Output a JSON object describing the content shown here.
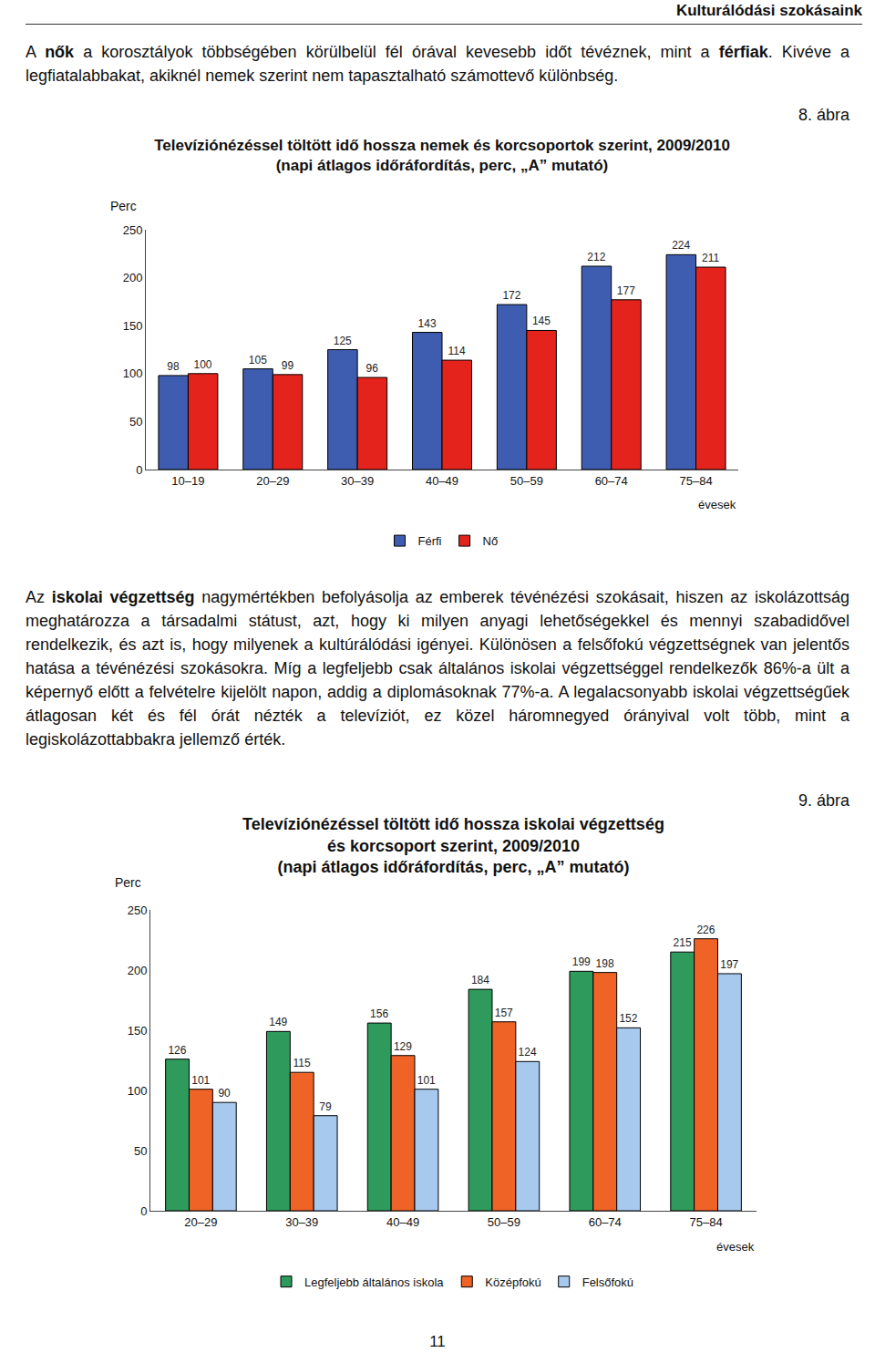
{
  "header": "Kulturálódási szokásaink",
  "paragraphs": [
    [
      {
        "text": "A ",
        "bold": false
      },
      {
        "text": "nők",
        "bold": true
      },
      {
        "text": " a korosztályok többségében körülbelül fél órával kevesebb időt tévéznek, mint a ",
        "bold": false
      },
      {
        "text": "férfiak",
        "bold": true
      },
      {
        "text": ". Kivéve a legfiatalabbakat, akiknél nemek szerint nem tapasztalható számottevő különbség.",
        "bold": false
      }
    ],
    [
      {
        "text": "Az ",
        "bold": false
      },
      {
        "text": "iskolai végzettség",
        "bold": true
      },
      {
        "text": " nagymértékben befolyásolja az emberek tévénézési szokásait, hiszen az iskolázottság meghatározza a társadalmi státust, azt, hogy ki milyen anyagi lehetőségekkel és mennyi szabadidővel rendelkezik, és azt is, hogy milyenek a kultúrálódási igényei. Különösen a felsőfokú végzettségnek van jelentős hatása a tévénézési szokásokra. Míg a legfeljebb csak általános iskolai végzettséggel rendelkezők 86%-a ült a képernyő előtt a felvételre kijelölt napon, addig a diplomásoknak 77%-a. A legalacsonyabb iskolai végzettségűek átlagosan két és fél órát nézték a televíziót, ez közel háromnegyed órányival volt több, mint a legiskolázottabbakra jellemző érték.",
        "bold": false
      }
    ]
  ],
  "chart_data": [
    {
      "type": "bar",
      "figure_label": "8. ábra",
      "title": [
        "Televíziónézéssel töltött idő hossza nemek és korcsoportok szerint, 2009/2010",
        "(napi átlagos időráfordítás, perc, „A” mutató)"
      ],
      "ylabel": "Perc",
      "xlabel": "évesek",
      "categories": [
        "10–19",
        "20–29",
        "30–39",
        "40–49",
        "50–59",
        "60–74",
        "75–84"
      ],
      "series": [
        {
          "name": "Férfi",
          "color": "#3f5db0",
          "values": [
            98,
            105,
            125,
            143,
            172,
            212,
            224
          ]
        },
        {
          "name": "Nő",
          "color": "#e3231c",
          "values": [
            100,
            99,
            96,
            114,
            145,
            177,
            211
          ]
        }
      ],
      "ylim": [
        0,
        250
      ],
      "yticks": [
        0,
        50,
        100,
        150,
        200,
        250
      ],
      "grid": false,
      "legend": "bottom",
      "data_labels": true
    },
    {
      "type": "bar",
      "figure_label": "9. ábra",
      "title": [
        "Televíziónézéssel töltött idő hossza iskolai végzettség",
        "és korcsoport szerint, 2009/2010",
        "(napi átlagos időráfordítás, perc, „A” mutató)"
      ],
      "ylabel": "Perc",
      "xlabel": "évesek",
      "categories": [
        "20–29",
        "30–39",
        "40–49",
        "50–59",
        "60–74",
        "75–84"
      ],
      "series": [
        {
          "name": "Legfeljebb általános iskola",
          "color": "#2e9a5c",
          "values": [
            126,
            149,
            156,
            184,
            199,
            215
          ]
        },
        {
          "name": "Középfokú",
          "color": "#ef6326",
          "values": [
            101,
            115,
            129,
            157,
            198,
            226
          ]
        },
        {
          "name": "Felsőfokú",
          "color": "#a7c9ee",
          "values": [
            90,
            79,
            101,
            124,
            152,
            197
          ]
        }
      ],
      "ylim": [
        0,
        250
      ],
      "yticks": [
        0,
        50,
        100,
        150,
        200,
        250
      ],
      "grid": false,
      "legend": "bottom",
      "data_labels": true
    }
  ],
  "page_number": "11"
}
